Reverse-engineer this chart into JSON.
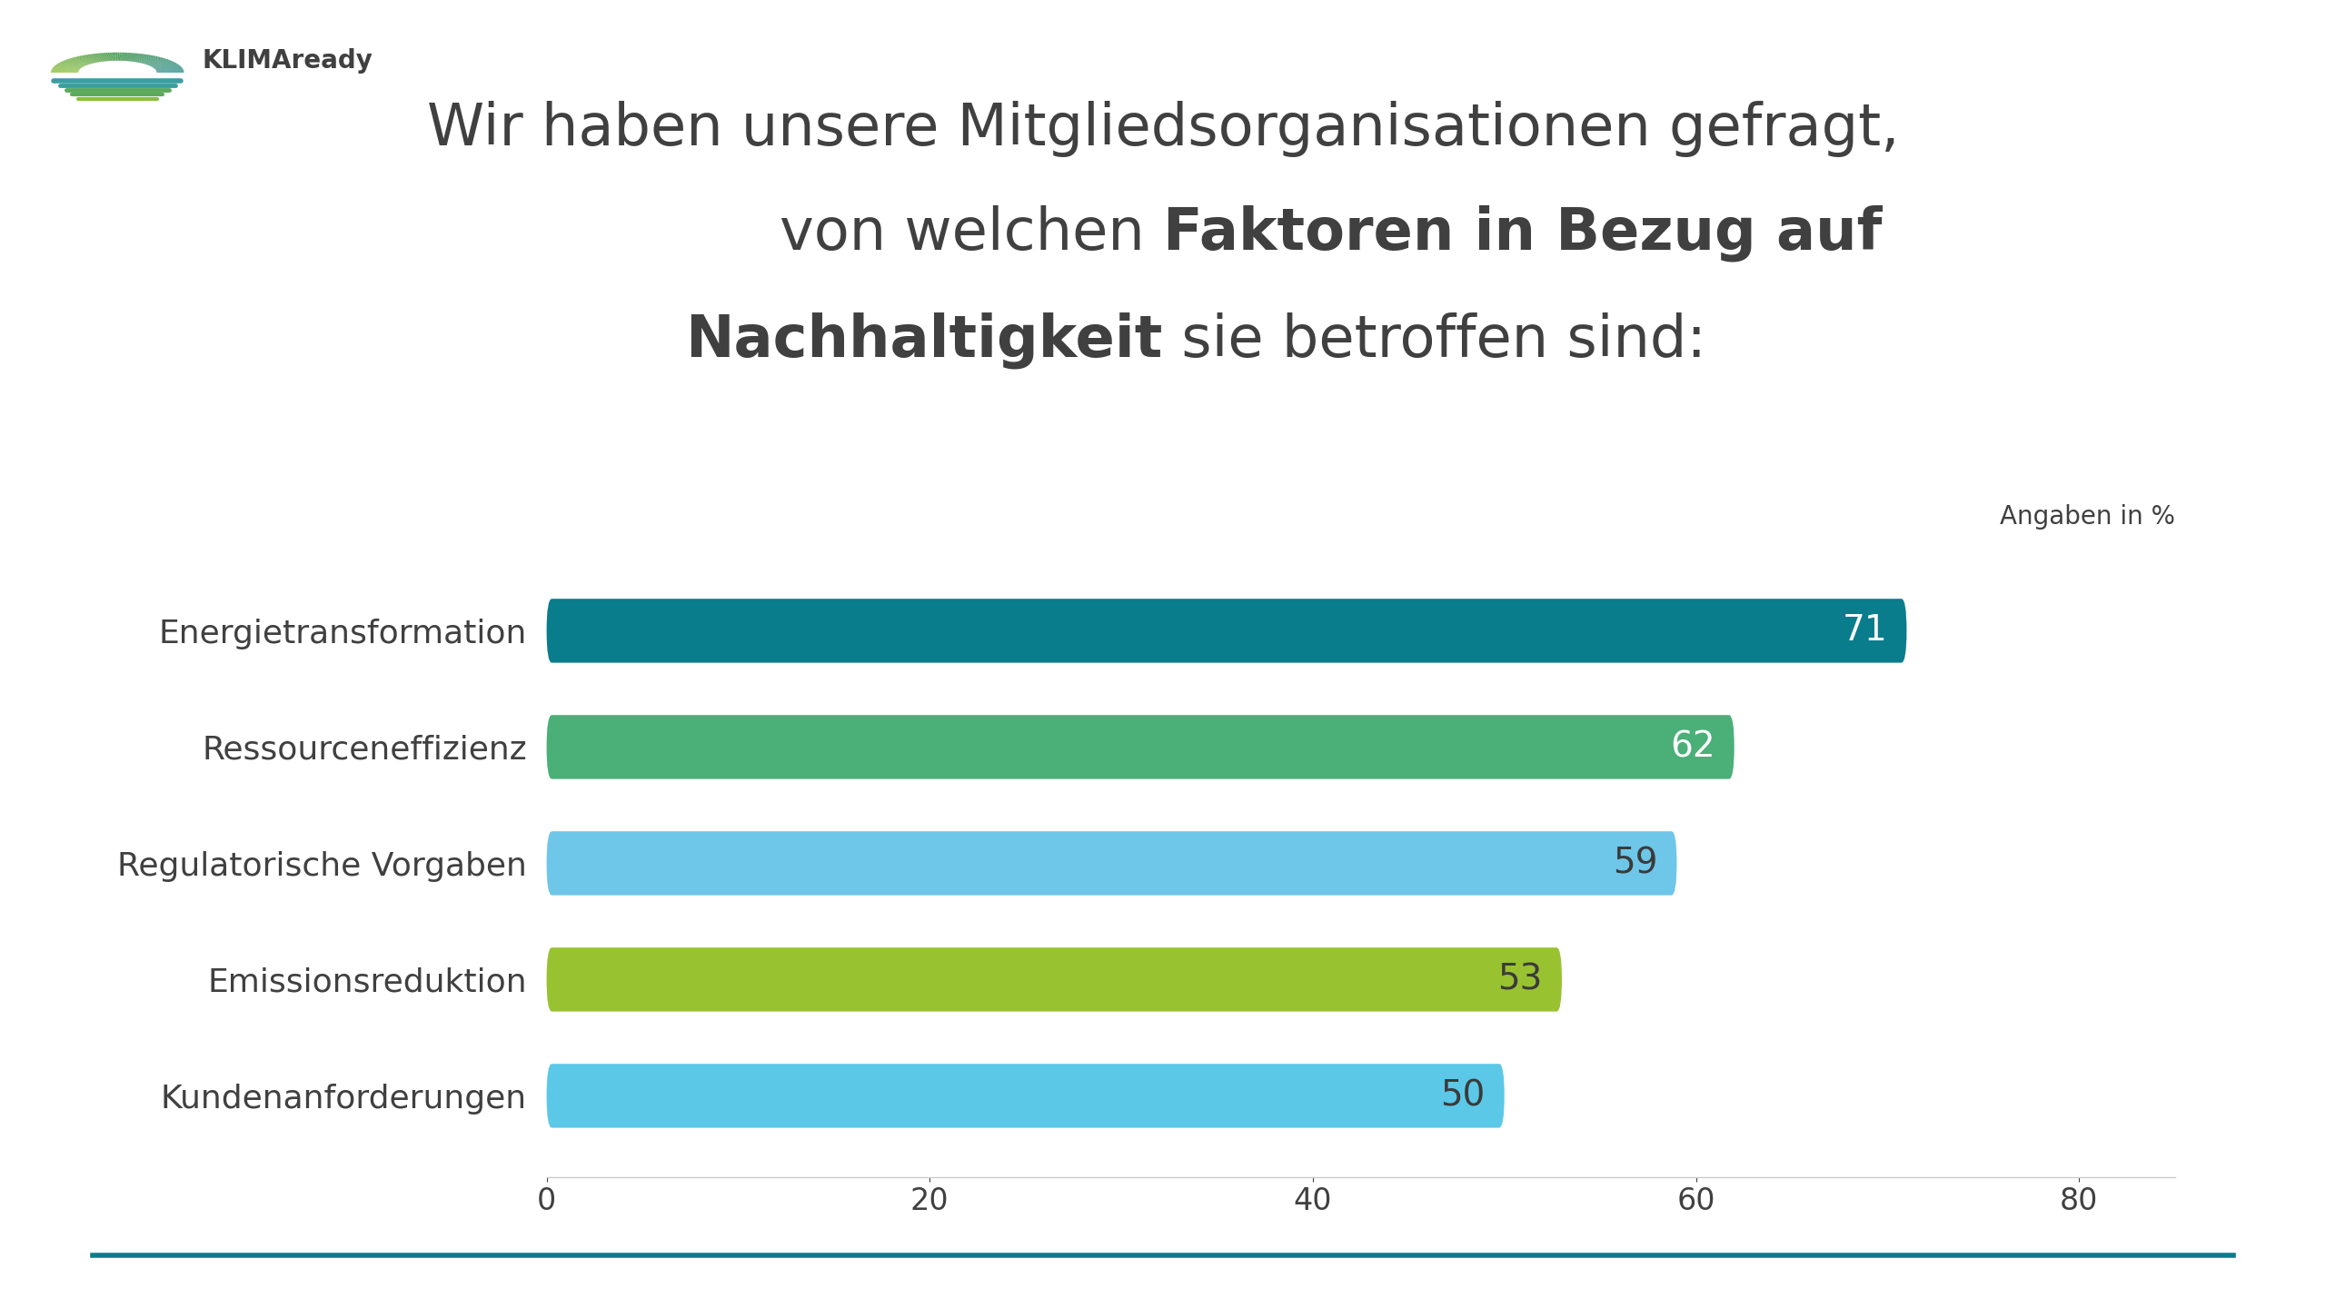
{
  "categories": [
    "Kundenanforderungen",
    "Emissionsreduktion",
    "Regulatorische Vorgaben",
    "Ressourceneffizienz",
    "Energietransformation"
  ],
  "values": [
    50,
    53,
    59,
    62,
    71
  ],
  "bar_colors": [
    "#5BC8E8",
    "#99C231",
    "#6EC6E8",
    "#4BAF78",
    "#0A7D8C"
  ],
  "title_line1": "Wir haben unsere Mitgliedsorganisationen gefragt,",
  "title_line2_normal": "von welchen ",
  "title_line2_bold": "Faktoren in Bezug auf",
  "title_line3_bold": "Nachhaltigkeit",
  "title_line3_normal": " sie betroffen sind:",
  "subtitle": "Angaben in %",
  "xlabel_ticks": [
    0,
    20,
    40,
    60,
    80
  ],
  "xlim": [
    0,
    85
  ],
  "bar_label_color_dark": "#3a3a3a",
  "bar_label_color_light": "#ffffff",
  "text_color": "#404040",
  "bg_color": "#ffffff",
  "teal_line_color": "#0A7D8C",
  "logo_text": "KLIMAready",
  "logo_color_text": "#404040",
  "title_fontsize": 46,
  "ytick_fontsize": 26,
  "xtick_fontsize": 24,
  "value_fontsize": 28,
  "subtitle_fontsize": 20
}
